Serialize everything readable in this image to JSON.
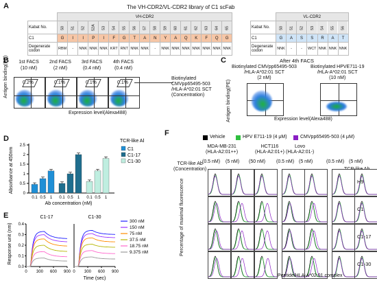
{
  "panels": {
    "A": "A",
    "B": "B",
    "C": "C",
    "D": "D",
    "E": "E",
    "F": "F"
  },
  "panel_a": {
    "title": "The VH-CDR2/VL-CDR2 library of C1 scFab",
    "vh_header": "VH-CDR2",
    "vl_header": "VL-CDR2",
    "row_labels": [
      "Kabat No.",
      "C1",
      "Degenerate codon"
    ],
    "vh_kabat": [
      "50",
      "51",
      "52",
      "52A",
      "53",
      "54",
      "55",
      "56",
      "57",
      "58",
      "59",
      "60",
      "61",
      "62",
      "63",
      "64",
      "65"
    ],
    "vh_c1": [
      "G",
      "I",
      "I",
      "P",
      "I",
      "F",
      "G",
      "T",
      "A",
      "N",
      "Y",
      "A",
      "Q",
      "K",
      "F",
      "Q",
      "G"
    ],
    "vh_codon": [
      "RBM",
      "-",
      "NNK",
      "NNK",
      "NNK",
      "KRT",
      "RNT",
      "NNK",
      "NNK",
      "-",
      "NNK",
      "NNK",
      "NNK",
      "NNK",
      "NNK",
      "NNK",
      "NNK"
    ],
    "vl_kabat": [
      "50",
      "51",
      "52",
      "53",
      "54",
      "55",
      "56"
    ],
    "vl_c1": [
      "G",
      "A",
      "S",
      "S",
      "R",
      "A",
      "T"
    ],
    "vl_codon": [
      "NNK",
      "-",
      "-",
      "WCT",
      "NNK",
      "NNK",
      "NNK"
    ],
    "colors": {
      "vh_c1_bg": "#f6c6a6",
      "vl_c1_bg": "#cfe4f7",
      "header_bg": "#e6e6e6"
    }
  },
  "panel_b": {
    "rounds": [
      {
        "label": "1st FACS",
        "conc": "(10 nM)",
        "pct": "0.2%"
      },
      {
        "label": "2nd FACS",
        "conc": "(2 nM)",
        "pct": "0.1%"
      },
      {
        "label": "3rd FACS",
        "conc": "(0.4 nM)",
        "pct": "0.1%"
      },
      {
        "label": "4th FACS",
        "conc": "(0.4 nM)",
        "pct": "0.1%"
      }
    ],
    "ylabel": "Antigen binding(PE)",
    "xlabel": "Expression level(Alexa488)",
    "antigen_line1": "Biotinylated",
    "antigen_line2": "CMVpp65495-503",
    "antigen_line3": "/HLA-A*02:01 SCT",
    "antigen_line4": "(Concentration)"
  },
  "panel_c": {
    "title": "After 4th FACS",
    "ylabel": "Antigen binding(PE)",
    "xlabel": "Expression level(Alexa488)",
    "left_line1": "Biotinylated CMVpp65495-503",
    "left_line2": "/HLA-A*02:01 SCT",
    "left_conc": "(2 nM)",
    "right_line1": "Biotinylated HPVE711-19",
    "right_line2": "/HLA-A*02:01 SCT",
    "right_conc": "(10 nM)"
  },
  "panel_d": {
    "ylabel": "Absorbance at 450nm",
    "xlabel": "Ab concentration (nM)",
    "legend_title": "TCR-like Ab",
    "x_ticks": [
      "0.1",
      "0.5",
      "1",
      "0.1",
      "0.5",
      "1",
      "0.1",
      "0.5",
      "1"
    ],
    "y_ticks": [
      "0",
      "0.5",
      "1",
      "1.5",
      "2",
      "2.5"
    ],
    "colors": {
      "C1": "#1f8fd6",
      "C1-17": "#1f6e8e",
      "C1-30": "#bfeee0"
    }
  },
  "chart_data": [
    {
      "type": "bar",
      "xlabel": "Ab concentration (nM)",
      "ylabel": "Absorbance at 450nm",
      "ylim": [
        0,
        2.5
      ],
      "categories": [
        "0.1",
        "0.5",
        "1"
      ],
      "series": [
        {
          "name": "C1",
          "values": [
            0.45,
            0.75,
            1.15
          ]
        },
        {
          "name": "C1-17",
          "values": [
            0.5,
            1.0,
            2.0
          ]
        },
        {
          "name": "C1-30",
          "values": [
            0.6,
            1.15,
            1.8
          ]
        }
      ]
    },
    {
      "type": "line",
      "title": "C1-17",
      "xlabel": "Time (sec)",
      "ylabel": "Response unit (nm)",
      "x_ticks": [
        "0",
        "300",
        "600",
        "900"
      ],
      "y_ticks": [
        "0.0",
        "0.1",
        "0.2",
        "0.3",
        "0.4"
      ],
      "ylim": [
        0,
        0.4
      ],
      "series": [
        {
          "name": "300 nM",
          "peak": 0.33,
          "end": 0.26
        },
        {
          "name": "150 nM",
          "peak": 0.3,
          "end": 0.23
        },
        {
          "name": "75 nM",
          "peak": 0.26,
          "end": 0.19
        },
        {
          "name": "37.5 nM",
          "peak": 0.2,
          "end": 0.14
        },
        {
          "name": "18.75 nM",
          "peak": 0.14,
          "end": 0.09
        },
        {
          "name": "9.375 nM",
          "peak": 0.08,
          "end": 0.05
        }
      ]
    },
    {
      "type": "line",
      "title": "C1-30",
      "xlabel": "Time (sec)",
      "x_ticks": [
        "0",
        "300",
        "600",
        "900"
      ],
      "ylim": [
        0,
        0.4
      ],
      "series": [
        {
          "name": "300 nM",
          "peak": 0.34,
          "end": 0.3
        },
        {
          "name": "150 nM",
          "peak": 0.31,
          "end": 0.27
        },
        {
          "name": "75 nM",
          "peak": 0.27,
          "end": 0.23
        },
        {
          "name": "37.5 nM",
          "peak": 0.21,
          "end": 0.18
        },
        {
          "name": "18.75 nM",
          "peak": 0.15,
          "end": 0.12
        },
        {
          "name": "9.375 nM",
          "peak": 0.09,
          "end": 0.07
        }
      ]
    }
  ],
  "panel_e": {
    "series_colors": [
      "#1a1aff",
      "#9b30ff",
      "#ff8c00",
      "#b5b500",
      "#ff66cc",
      "#999999"
    ],
    "legend": [
      "300 nM",
      "150 nM",
      "75 nM",
      "37.5 nM",
      "18.75 nM",
      "9.375 nM"
    ]
  },
  "panel_f": {
    "legend": [
      {
        "label": "Vehicle",
        "color": "#000000"
      },
      {
        "label": "HPV E711-19 (4 μM)",
        "color": "#2fbf3f"
      },
      {
        "label": "CMVpp65495-503 (4 μM)",
        "color": "#8a1fc4"
      }
    ],
    "cell_lines": [
      {
        "name": "MDA-MB-231",
        "hla": "(HLA-A2:01++)"
      },
      {
        "name": "HCT116",
        "hla": "(HLA-A2:01+)"
      },
      {
        "name": "Lovo",
        "hla": "(HLA-A2:01-)"
      }
    ],
    "row_header": "TCR-like Ab",
    "row_header2": "(Concentration)",
    "concs": [
      "(0.5 nM)",
      "(5 nM)",
      "(50 nM)",
      "(0.5 nM)",
      "(5 nM)",
      "(0.5 nM)",
      "(5 nM)"
    ],
    "col_header_right": "TCR-like Ab",
    "rows": [
      "H9",
      "C1",
      "C1-17",
      "C1-30"
    ],
    "ylabel": "Percentage of maximal fluorescence",
    "xlabel": "Peptide/HLA-A*02:01 complex"
  }
}
